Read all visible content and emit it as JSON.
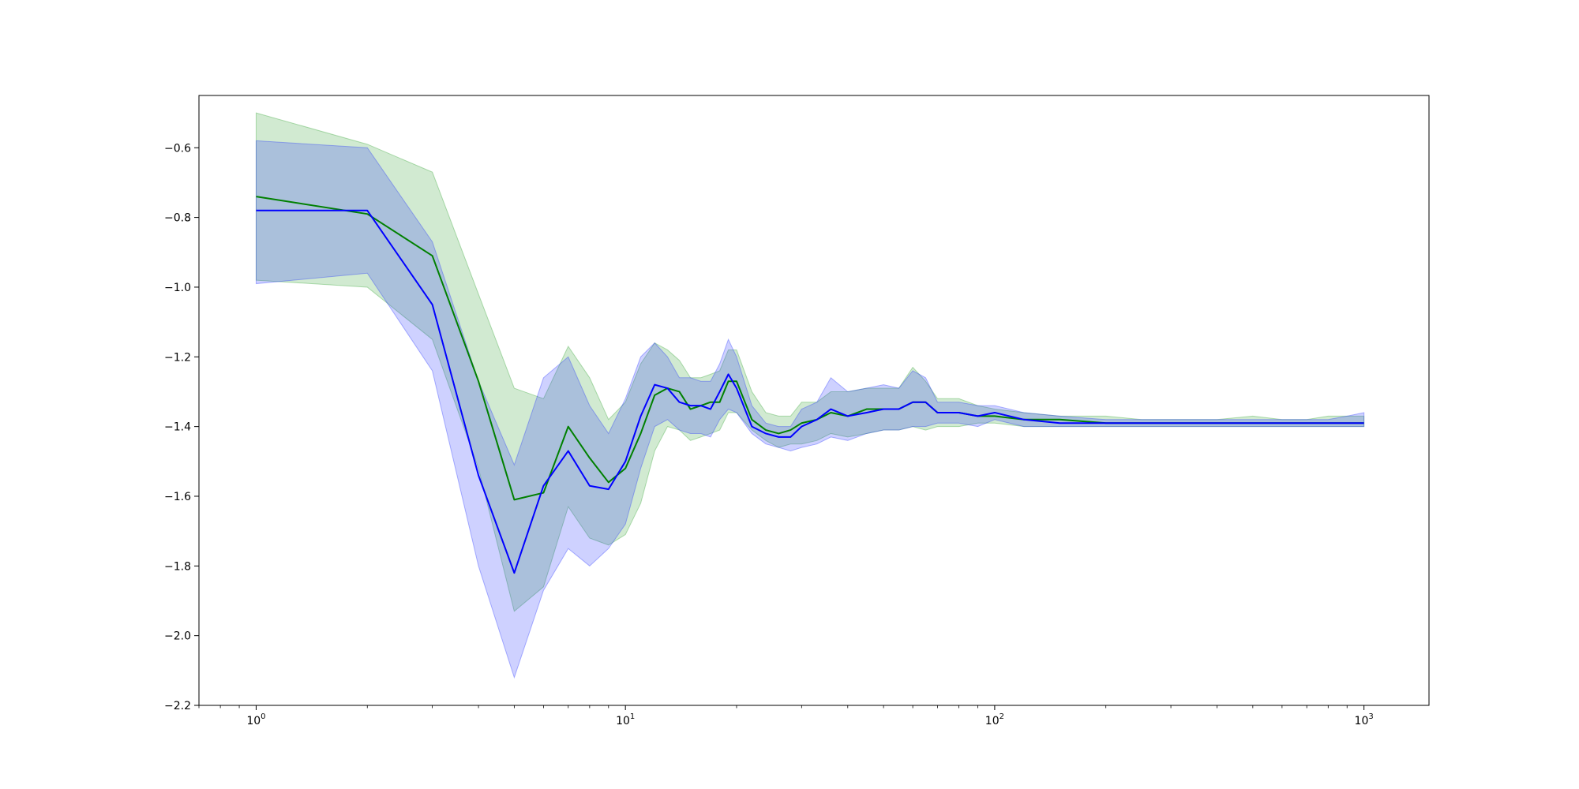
{
  "chart_data": {
    "type": "line",
    "xscale": "log",
    "xlim": [
      0.7,
      1500
    ],
    "ylim": [
      -2.2,
      -0.45
    ],
    "grid": false,
    "legend": "none",
    "x_major_ticks": [
      {
        "value": 1,
        "base": "10",
        "exp": "0"
      },
      {
        "value": 10,
        "base": "10",
        "exp": "1"
      },
      {
        "value": 100,
        "base": "10",
        "exp": "2"
      },
      {
        "value": 1000,
        "base": "10",
        "exp": "3"
      }
    ],
    "y_ticks": [
      {
        "value": -0.6,
        "label": "−0.6"
      },
      {
        "value": -0.8,
        "label": "−0.8"
      },
      {
        "value": -1.0,
        "label": "−1.0"
      },
      {
        "value": -1.2,
        "label": "−1.2"
      },
      {
        "value": -1.4,
        "label": "−1.4"
      },
      {
        "value": -1.6,
        "label": "−1.6"
      },
      {
        "value": -1.8,
        "label": "−1.8"
      },
      {
        "value": -2.0,
        "label": "−2.0"
      },
      {
        "value": -2.2,
        "label": "−2.2"
      }
    ],
    "series": [
      {
        "color": "#008000",
        "band_color": "#2ca02c",
        "band_opacity": 0.22,
        "x": [
          1,
          2,
          3,
          4,
          5,
          6,
          7,
          8,
          9,
          10,
          11,
          12,
          13,
          14,
          15,
          16,
          17,
          18,
          19,
          20,
          22,
          24,
          26,
          28,
          30,
          33,
          36,
          40,
          45,
          50,
          55,
          60,
          65,
          70,
          80,
          90,
          100,
          120,
          150,
          200,
          250,
          300,
          400,
          500,
          600,
          700,
          800,
          900,
          1000
        ],
        "y": [
          -0.74,
          -0.79,
          -0.91,
          -1.27,
          -1.61,
          -1.59,
          -1.4,
          -1.49,
          -1.56,
          -1.52,
          -1.42,
          -1.31,
          -1.29,
          -1.3,
          -1.35,
          -1.34,
          -1.33,
          -1.33,
          -1.27,
          -1.27,
          -1.38,
          -1.41,
          -1.42,
          -1.41,
          -1.39,
          -1.38,
          -1.36,
          -1.37,
          -1.35,
          -1.35,
          -1.35,
          -1.33,
          -1.33,
          -1.36,
          -1.36,
          -1.37,
          -1.37,
          -1.38,
          -1.38,
          -1.39,
          -1.39,
          -1.39,
          -1.39,
          -1.39,
          -1.39,
          -1.39,
          -1.39,
          -1.39,
          -1.39
        ],
        "upper": [
          -0.5,
          -0.59,
          -0.67,
          -1.02,
          -1.29,
          -1.32,
          -1.17,
          -1.26,
          -1.38,
          -1.33,
          -1.22,
          -1.16,
          -1.18,
          -1.21,
          -1.26,
          -1.26,
          -1.25,
          -1.24,
          -1.18,
          -1.18,
          -1.3,
          -1.36,
          -1.37,
          -1.37,
          -1.33,
          -1.33,
          -1.3,
          -1.3,
          -1.29,
          -1.29,
          -1.29,
          -1.23,
          -1.27,
          -1.32,
          -1.32,
          -1.34,
          -1.35,
          -1.36,
          -1.37,
          -1.37,
          -1.38,
          -1.38,
          -1.38,
          -1.37,
          -1.38,
          -1.38,
          -1.37,
          -1.37,
          -1.37
        ],
        "lower": [
          -0.98,
          -1.0,
          -1.15,
          -1.52,
          -1.93,
          -1.86,
          -1.63,
          -1.72,
          -1.74,
          -1.71,
          -1.62,
          -1.47,
          -1.4,
          -1.41,
          -1.44,
          -1.43,
          -1.42,
          -1.41,
          -1.36,
          -1.36,
          -1.41,
          -1.44,
          -1.46,
          -1.45,
          -1.45,
          -1.44,
          -1.42,
          -1.43,
          -1.42,
          -1.41,
          -1.41,
          -1.4,
          -1.41,
          -1.4,
          -1.4,
          -1.39,
          -1.39,
          -1.4,
          -1.4,
          -1.4,
          -1.4,
          -1.4,
          -1.4,
          -1.4,
          -1.4,
          -1.4,
          -1.4,
          -1.4,
          -1.4
        ]
      },
      {
        "color": "#0000ff",
        "band_color": "#1f2fff",
        "band_opacity": 0.22,
        "x": [
          1,
          2,
          3,
          4,
          5,
          6,
          7,
          8,
          9,
          10,
          11,
          12,
          13,
          14,
          15,
          16,
          17,
          18,
          19,
          20,
          22,
          24,
          26,
          28,
          30,
          33,
          36,
          40,
          45,
          50,
          55,
          60,
          65,
          70,
          80,
          90,
          100,
          120,
          150,
          200,
          250,
          300,
          400,
          500,
          600,
          700,
          800,
          900,
          1000
        ],
        "y": [
          -0.78,
          -0.78,
          -1.05,
          -1.54,
          -1.82,
          -1.57,
          -1.47,
          -1.57,
          -1.58,
          -1.5,
          -1.37,
          -1.28,
          -1.29,
          -1.33,
          -1.34,
          -1.34,
          -1.35,
          -1.3,
          -1.25,
          -1.29,
          -1.4,
          -1.42,
          -1.43,
          -1.43,
          -1.4,
          -1.38,
          -1.35,
          -1.37,
          -1.36,
          -1.35,
          -1.35,
          -1.33,
          -1.33,
          -1.36,
          -1.36,
          -1.37,
          -1.36,
          -1.38,
          -1.39,
          -1.39,
          -1.39,
          -1.39,
          -1.39,
          -1.39,
          -1.39,
          -1.39,
          -1.39,
          -1.39,
          -1.39
        ],
        "upper": [
          -0.58,
          -0.6,
          -0.87,
          -1.27,
          -1.51,
          -1.26,
          -1.2,
          -1.34,
          -1.42,
          -1.32,
          -1.2,
          -1.16,
          -1.2,
          -1.26,
          -1.26,
          -1.27,
          -1.27,
          -1.22,
          -1.15,
          -1.2,
          -1.34,
          -1.39,
          -1.4,
          -1.4,
          -1.35,
          -1.33,
          -1.26,
          -1.3,
          -1.29,
          -1.28,
          -1.29,
          -1.24,
          -1.26,
          -1.33,
          -1.33,
          -1.34,
          -1.34,
          -1.36,
          -1.37,
          -1.38,
          -1.38,
          -1.38,
          -1.38,
          -1.38,
          -1.38,
          -1.38,
          -1.38,
          -1.37,
          -1.36
        ],
        "lower": [
          -0.99,
          -0.96,
          -1.24,
          -1.8,
          -2.12,
          -1.87,
          -1.75,
          -1.8,
          -1.75,
          -1.68,
          -1.52,
          -1.4,
          -1.38,
          -1.41,
          -1.42,
          -1.42,
          -1.43,
          -1.38,
          -1.35,
          -1.36,
          -1.42,
          -1.45,
          -1.46,
          -1.47,
          -1.46,
          -1.45,
          -1.43,
          -1.44,
          -1.42,
          -1.41,
          -1.41,
          -1.4,
          -1.4,
          -1.39,
          -1.39,
          -1.4,
          -1.38,
          -1.4,
          -1.4,
          -1.4,
          -1.4,
          -1.4,
          -1.4,
          -1.4,
          -1.4,
          -1.4,
          -1.4,
          -1.4,
          -1.4
        ]
      }
    ]
  }
}
